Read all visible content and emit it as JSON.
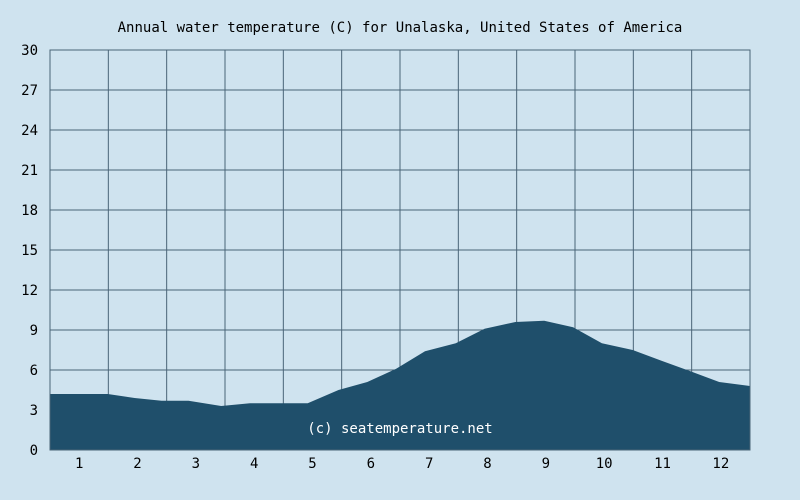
{
  "chart_data": {
    "type": "area",
    "title": "Annual water temperature (C) for Unalaska, United States of America",
    "xlabel": "",
    "ylabel": "",
    "x_tick_labels": [
      "1",
      "2",
      "3",
      "4",
      "5",
      "6",
      "7",
      "8",
      "9",
      "10",
      "11",
      "12"
    ],
    "y_ticks": [
      0,
      3,
      6,
      9,
      12,
      15,
      18,
      21,
      24,
      27,
      30
    ],
    "ylim": [
      0,
      30
    ],
    "xlim": [
      1,
      365
    ],
    "grid": true,
    "legend": "none",
    "watermark": "(c) seatemperature.net",
    "series": [
      {
        "day": [
          1,
          15,
          31,
          45,
          59,
          73,
          90,
          105,
          120,
          135,
          151,
          166,
          181,
          196,
          212,
          227,
          243,
          258,
          273,
          288,
          304,
          319,
          334,
          349,
          365
        ],
        "values": [
          4.2,
          4.2,
          4.2,
          3.9,
          3.7,
          3.7,
          3.3,
          3.5,
          3.5,
          3.5,
          4.5,
          5.1,
          6.1,
          7.4,
          8.0,
          9.1,
          9.6,
          9.7,
          9.2,
          8.0,
          7.5,
          6.7,
          5.9,
          5.1,
          4.8
        ]
      }
    ],
    "colors": {
      "background": "#cfe3ef",
      "plot_background": "#cfe3ef",
      "area_fill": "#1f4f6b",
      "grid": "#4a6477",
      "text": "#000000",
      "watermark": "#ffffff"
    }
  }
}
